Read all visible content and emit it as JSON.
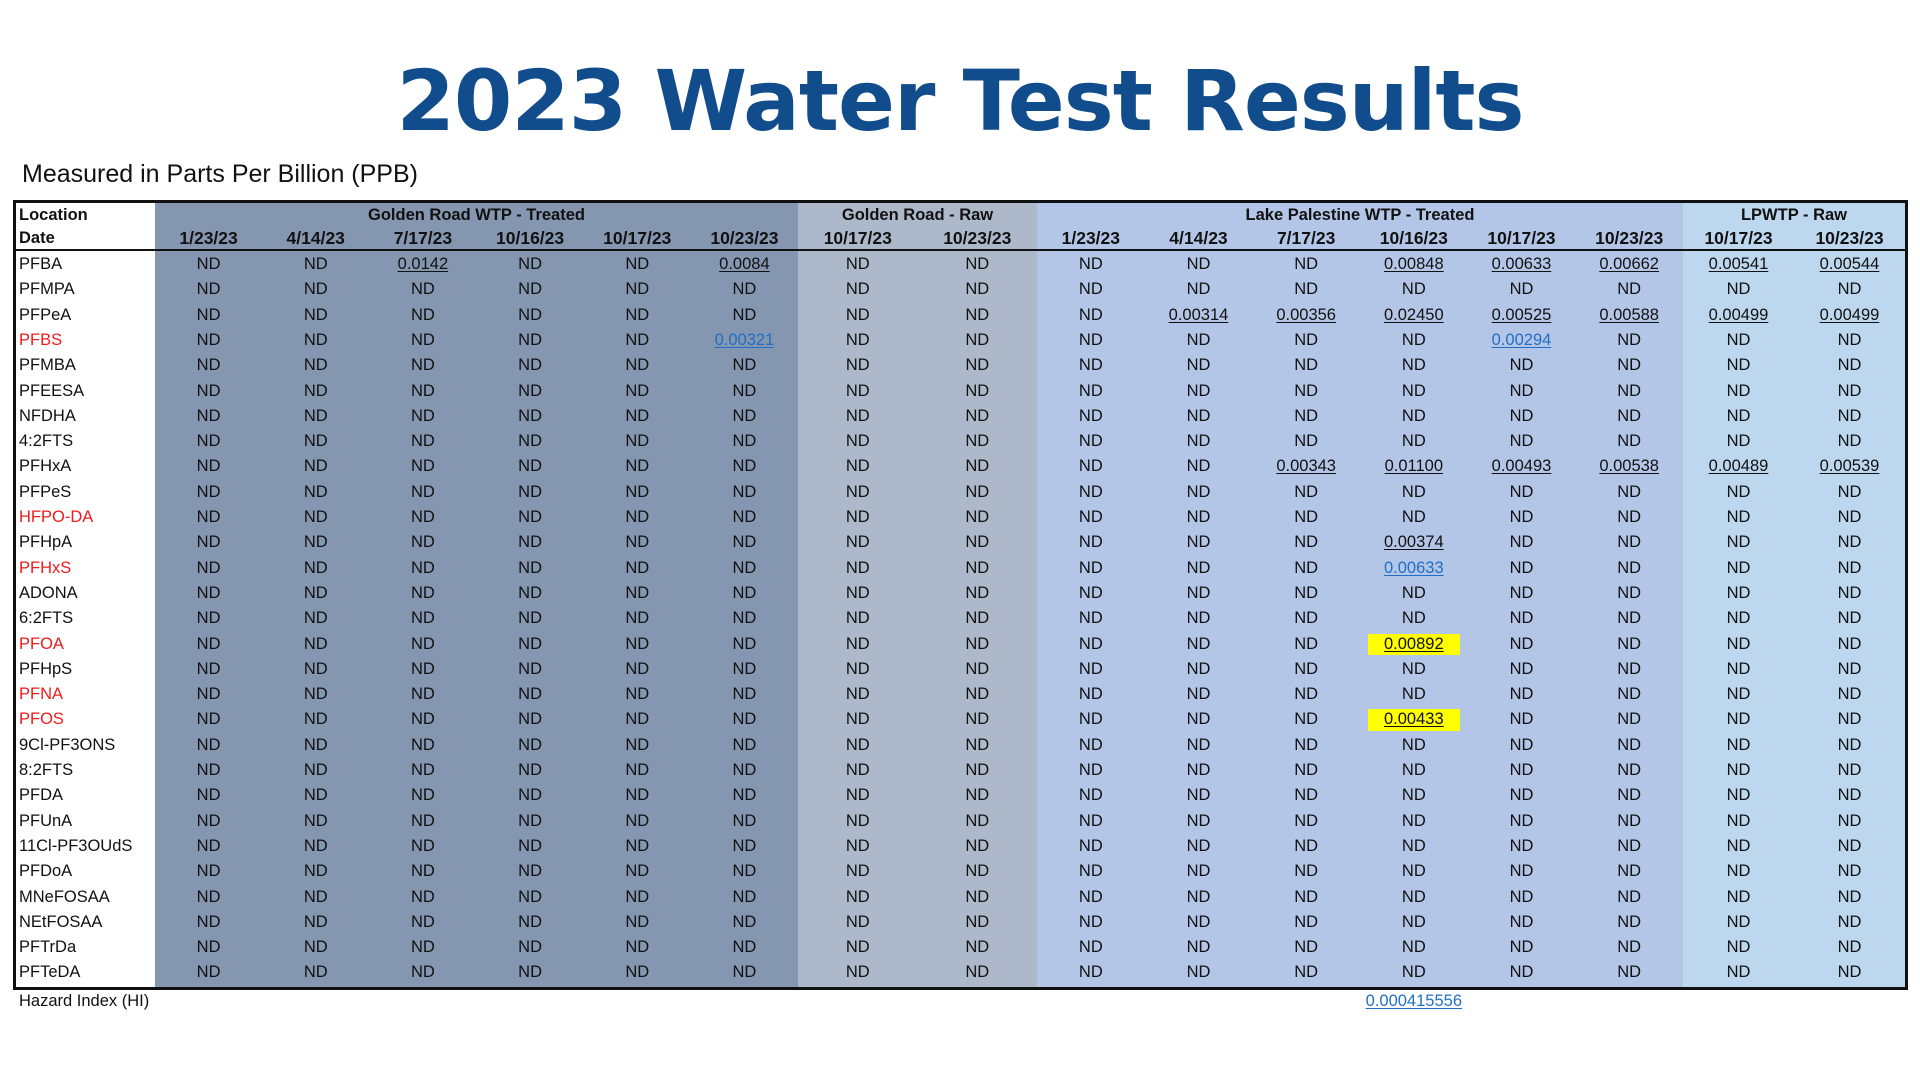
{
  "title": "2023 Water Test Results",
  "subtitle": "Measured in Parts Per Billion (PPB)",
  "colors": {
    "title": "#114c8c",
    "golden_road_treated": "#8496b0",
    "golden_road_raw": "#adb9ca",
    "lake_palestine_treated": "#b4c6e7",
    "lpwtp_raw": "#bdd7ee",
    "regulated_compound": "#ee1c1c",
    "link": "#1f6fc6",
    "highlight": "#ffff00"
  },
  "table": {
    "location_label": "Location",
    "date_label": "Date",
    "groups": [
      {
        "name": "Golden Road WTP - Treated",
        "dates": [
          "1/23/23",
          "4/14/23",
          "7/17/23",
          "10/16/23",
          "10/17/23",
          "10/23/23"
        ]
      },
      {
        "name": "Golden Road - Raw",
        "dates": [
          "10/17/23",
          "10/23/23"
        ]
      },
      {
        "name": "Lake Palestine WTP - Treated",
        "dates": [
          "1/23/23",
          "4/14/23",
          "7/17/23",
          "10/16/23",
          "10/17/23",
          "10/23/23"
        ]
      },
      {
        "name": "LPWTP - Raw",
        "dates": [
          "10/17/23",
          "10/23/23"
        ]
      }
    ],
    "rows": [
      {
        "compound": "PFBA",
        "regulated": false,
        "values": [
          "ND",
          "ND",
          "0.0142",
          "ND",
          "ND",
          "0.0084",
          "ND",
          "ND",
          "ND",
          "ND",
          "ND",
          "0.00848",
          "0.00633",
          "0.00662",
          "0.00541",
          "0.00544"
        ]
      },
      {
        "compound": "PFMPA",
        "regulated": false,
        "values": [
          "ND",
          "ND",
          "ND",
          "ND",
          "ND",
          "ND",
          "ND",
          "ND",
          "ND",
          "ND",
          "ND",
          "ND",
          "ND",
          "ND",
          "ND",
          "ND"
        ]
      },
      {
        "compound": "PFPeA",
        "regulated": false,
        "values": [
          "ND",
          "ND",
          "ND",
          "ND",
          "ND",
          "ND",
          "ND",
          "ND",
          "ND",
          "0.00314",
          "0.00356",
          "0.02450",
          "0.00525",
          "0.00588",
          "0.00499",
          "0.00499"
        ]
      },
      {
        "compound": "PFBS",
        "regulated": true,
        "values": [
          "ND",
          "ND",
          "ND",
          "ND",
          "ND",
          "0.00321",
          "ND",
          "ND",
          "ND",
          "ND",
          "ND",
          "ND",
          "0.00294",
          "ND",
          "ND",
          "ND"
        ]
      },
      {
        "compound": "PFMBA",
        "regulated": false,
        "values": [
          "ND",
          "ND",
          "ND",
          "ND",
          "ND",
          "ND",
          "ND",
          "ND",
          "ND",
          "ND",
          "ND",
          "ND",
          "ND",
          "ND",
          "ND",
          "ND"
        ]
      },
      {
        "compound": "PFEESA",
        "regulated": false,
        "values": [
          "ND",
          "ND",
          "ND",
          "ND",
          "ND",
          "ND",
          "ND",
          "ND",
          "ND",
          "ND",
          "ND",
          "ND",
          "ND",
          "ND",
          "ND",
          "ND"
        ]
      },
      {
        "compound": "NFDHA",
        "regulated": false,
        "values": [
          "ND",
          "ND",
          "ND",
          "ND",
          "ND",
          "ND",
          "ND",
          "ND",
          "ND",
          "ND",
          "ND",
          "ND",
          "ND",
          "ND",
          "ND",
          "ND"
        ]
      },
      {
        "compound": "4:2FTS",
        "regulated": false,
        "values": [
          "ND",
          "ND",
          "ND",
          "ND",
          "ND",
          "ND",
          "ND",
          "ND",
          "ND",
          "ND",
          "ND",
          "ND",
          "ND",
          "ND",
          "ND",
          "ND"
        ]
      },
      {
        "compound": "PFHxA",
        "regulated": false,
        "values": [
          "ND",
          "ND",
          "ND",
          "ND",
          "ND",
          "ND",
          "ND",
          "ND",
          "ND",
          "ND",
          "0.00343",
          "0.01100",
          "0.00493",
          "0.00538",
          "0.00489",
          "0.00539"
        ]
      },
      {
        "compound": "PFPeS",
        "regulated": false,
        "values": [
          "ND",
          "ND",
          "ND",
          "ND",
          "ND",
          "ND",
          "ND",
          "ND",
          "ND",
          "ND",
          "ND",
          "ND",
          "ND",
          "ND",
          "ND",
          "ND"
        ]
      },
      {
        "compound": "HFPO-DA",
        "regulated": true,
        "values": [
          "ND",
          "ND",
          "ND",
          "ND",
          "ND",
          "ND",
          "ND",
          "ND",
          "ND",
          "ND",
          "ND",
          "ND",
          "ND",
          "ND",
          "ND",
          "ND"
        ]
      },
      {
        "compound": "PFHpA",
        "regulated": false,
        "values": [
          "ND",
          "ND",
          "ND",
          "ND",
          "ND",
          "ND",
          "ND",
          "ND",
          "ND",
          "ND",
          "ND",
          "0.00374",
          "ND",
          "ND",
          "ND",
          "ND"
        ]
      },
      {
        "compound": "PFHxS",
        "regulated": true,
        "values": [
          "ND",
          "ND",
          "ND",
          "ND",
          "ND",
          "ND",
          "ND",
          "ND",
          "ND",
          "ND",
          "ND",
          "0.00633",
          "ND",
          "ND",
          "ND",
          "ND"
        ]
      },
      {
        "compound": "ADONA",
        "regulated": false,
        "values": [
          "ND",
          "ND",
          "ND",
          "ND",
          "ND",
          "ND",
          "ND",
          "ND",
          "ND",
          "ND",
          "ND",
          "ND",
          "ND",
          "ND",
          "ND",
          "ND"
        ]
      },
      {
        "compound": "6:2FTS",
        "regulated": false,
        "values": [
          "ND",
          "ND",
          "ND",
          "ND",
          "ND",
          "ND",
          "ND",
          "ND",
          "ND",
          "ND",
          "ND",
          "ND",
          "ND",
          "ND",
          "ND",
          "ND"
        ]
      },
      {
        "compound": "PFOA",
        "regulated": true,
        "values": [
          "ND",
          "ND",
          "ND",
          "ND",
          "ND",
          "ND",
          "ND",
          "ND",
          "ND",
          "ND",
          "ND",
          "0.00892",
          "ND",
          "ND",
          "ND",
          "ND"
        ]
      },
      {
        "compound": "PFHpS",
        "regulated": false,
        "values": [
          "ND",
          "ND",
          "ND",
          "ND",
          "ND",
          "ND",
          "ND",
          "ND",
          "ND",
          "ND",
          "ND",
          "ND",
          "ND",
          "ND",
          "ND",
          "ND"
        ]
      },
      {
        "compound": "PFNA",
        "regulated": true,
        "values": [
          "ND",
          "ND",
          "ND",
          "ND",
          "ND",
          "ND",
          "ND",
          "ND",
          "ND",
          "ND",
          "ND",
          "ND",
          "ND",
          "ND",
          "ND",
          "ND"
        ]
      },
      {
        "compound": "PFOS",
        "regulated": true,
        "values": [
          "ND",
          "ND",
          "ND",
          "ND",
          "ND",
          "ND",
          "ND",
          "ND",
          "ND",
          "ND",
          "ND",
          "0.00433",
          "ND",
          "ND",
          "ND",
          "ND"
        ]
      },
      {
        "compound": "9Cl-PF3ONS",
        "regulated": false,
        "values": [
          "ND",
          "ND",
          "ND",
          "ND",
          "ND",
          "ND",
          "ND",
          "ND",
          "ND",
          "ND",
          "ND",
          "ND",
          "ND",
          "ND",
          "ND",
          "ND"
        ]
      },
      {
        "compound": "8:2FTS",
        "regulated": false,
        "values": [
          "ND",
          "ND",
          "ND",
          "ND",
          "ND",
          "ND",
          "ND",
          "ND",
          "ND",
          "ND",
          "ND",
          "ND",
          "ND",
          "ND",
          "ND",
          "ND"
        ]
      },
      {
        "compound": "PFDA",
        "regulated": false,
        "values": [
          "ND",
          "ND",
          "ND",
          "ND",
          "ND",
          "ND",
          "ND",
          "ND",
          "ND",
          "ND",
          "ND",
          "ND",
          "ND",
          "ND",
          "ND",
          "ND"
        ]
      },
      {
        "compound": "PFUnA",
        "regulated": false,
        "values": [
          "ND",
          "ND",
          "ND",
          "ND",
          "ND",
          "ND",
          "ND",
          "ND",
          "ND",
          "ND",
          "ND",
          "ND",
          "ND",
          "ND",
          "ND",
          "ND"
        ]
      },
      {
        "compound": "11Cl-PF3OUdS",
        "regulated": false,
        "values": [
          "ND",
          "ND",
          "ND",
          "ND",
          "ND",
          "ND",
          "ND",
          "ND",
          "ND",
          "ND",
          "ND",
          "ND",
          "ND",
          "ND",
          "ND",
          "ND"
        ]
      },
      {
        "compound": "PFDoA",
        "regulated": false,
        "values": [
          "ND",
          "ND",
          "ND",
          "ND",
          "ND",
          "ND",
          "ND",
          "ND",
          "ND",
          "ND",
          "ND",
          "ND",
          "ND",
          "ND",
          "ND",
          "ND"
        ]
      },
      {
        "compound": "MNeFOSAA",
        "regulated": false,
        "values": [
          "ND",
          "ND",
          "ND",
          "ND",
          "ND",
          "ND",
          "ND",
          "ND",
          "ND",
          "ND",
          "ND",
          "ND",
          "ND",
          "ND",
          "ND",
          "ND"
        ]
      },
      {
        "compound": "NEtFOSAA",
        "regulated": false,
        "values": [
          "ND",
          "ND",
          "ND",
          "ND",
          "ND",
          "ND",
          "ND",
          "ND",
          "ND",
          "ND",
          "ND",
          "ND",
          "ND",
          "ND",
          "ND",
          "ND"
        ]
      },
      {
        "compound": "PFTrDa",
        "regulated": false,
        "values": [
          "ND",
          "ND",
          "ND",
          "ND",
          "ND",
          "ND",
          "ND",
          "ND",
          "ND",
          "ND",
          "ND",
          "ND",
          "ND",
          "ND",
          "ND",
          "ND"
        ]
      },
      {
        "compound": "PFTeDA",
        "regulated": false,
        "values": [
          "ND",
          "ND",
          "ND",
          "ND",
          "ND",
          "ND",
          "ND",
          "ND",
          "ND",
          "ND",
          "ND",
          "ND",
          "ND",
          "ND",
          "ND",
          "ND"
        ]
      }
    ],
    "links": [
      [
        3,
        5
      ],
      [
        3,
        12
      ],
      [
        12,
        11
      ]
    ],
    "highlighted": [
      [
        15,
        11
      ],
      [
        18,
        11
      ]
    ],
    "hazard_index": {
      "label": "Hazard Index (HI)",
      "value": "0.000415556",
      "column": 11
    }
  }
}
